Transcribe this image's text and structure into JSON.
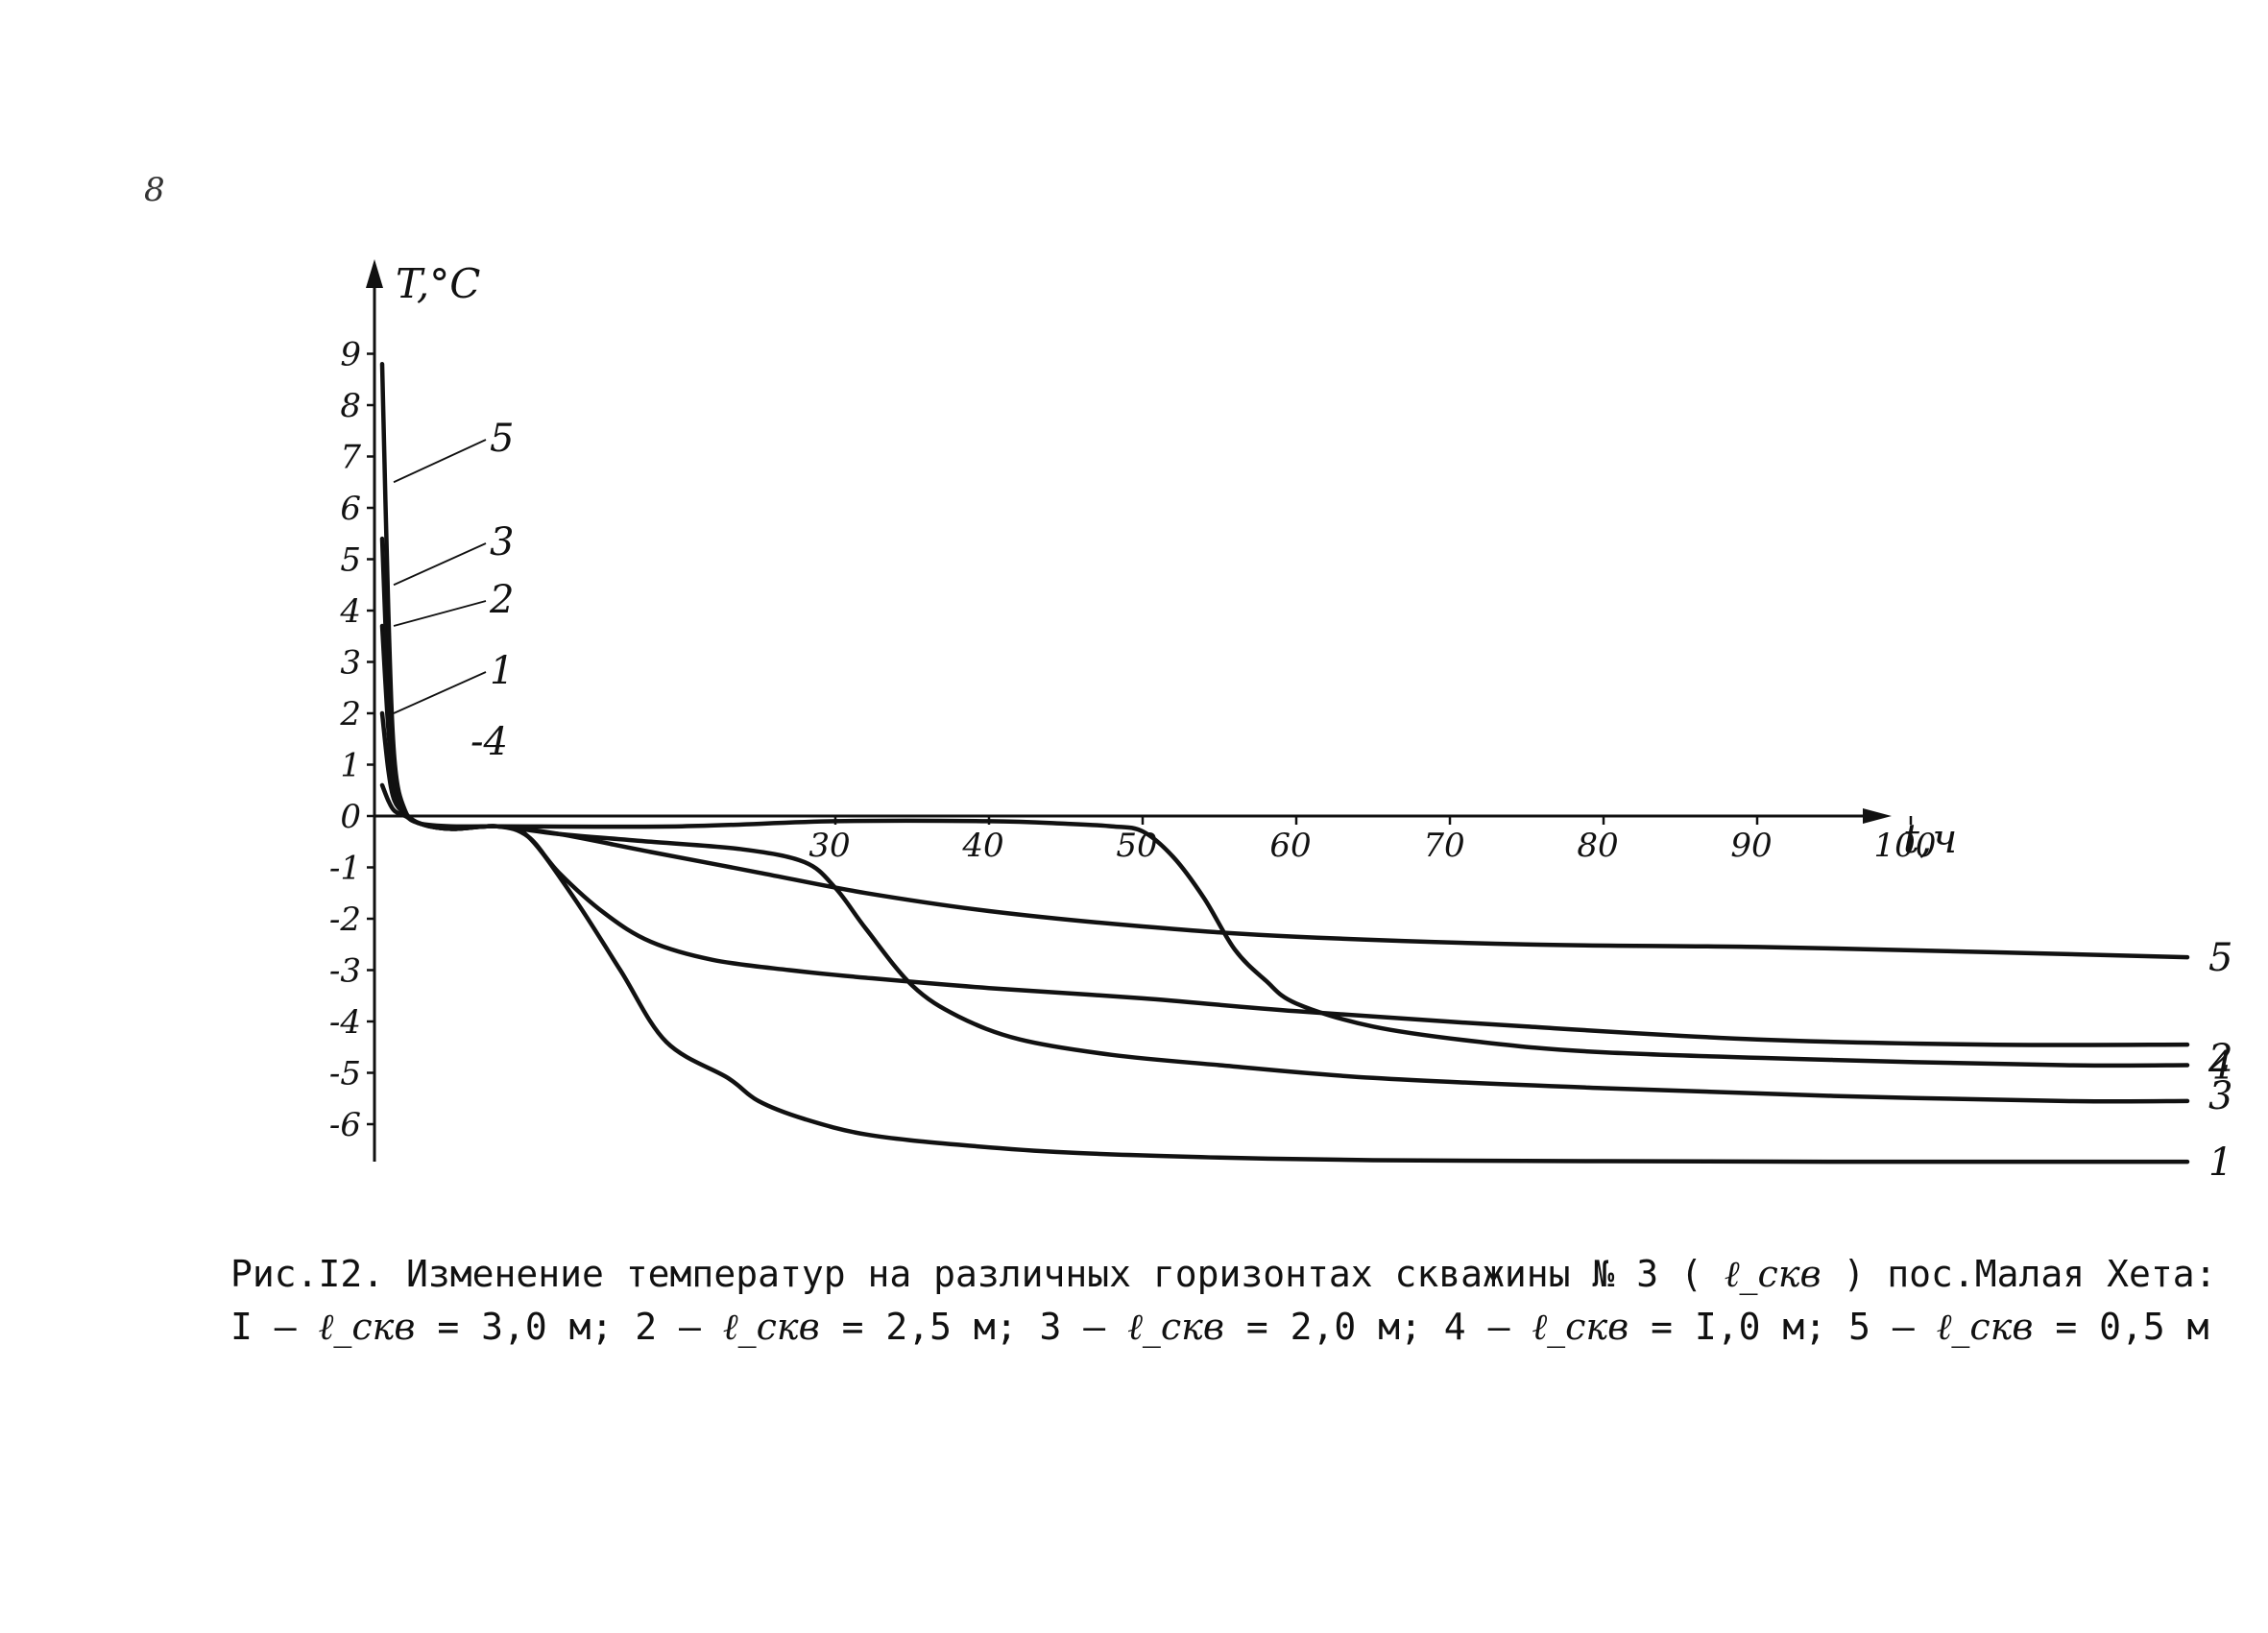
{
  "page": {
    "mark": "8"
  },
  "caption": {
    "line1_prefix": "Рис.I2. Изменение температур на различных горизонтах скважины № 3 (",
    "line1_symbol": "ℓ_скв",
    "line1_suffix": ") пос.Малая Хета:",
    "legend": [
      {
        "num": "I",
        "symbol": "ℓ_скв",
        "value": "= 3,0 м;"
      },
      {
        "num": "2",
        "symbol": "ℓ_скв",
        "value": "= 2,5 м;"
      },
      {
        "num": "3",
        "symbol": "ℓ_скв",
        "value": "= 2,0 м;"
      },
      {
        "num": "4",
        "symbol": "ℓ_скв",
        "value": "= I,0 м;"
      },
      {
        "num": "5",
        "symbol": "ℓ_скв",
        "value": "= 0,5 м"
      }
    ]
  },
  "chart_data": {
    "type": "line",
    "ylabel": "T,°C",
    "xlabel": "t,ч",
    "xlim": [
      0,
      120
    ],
    "ylim": [
      -6.5,
      10
    ],
    "x_ticks": [
      30,
      40,
      50,
      60,
      70,
      80,
      90,
      100
    ],
    "y_ticks": [
      9,
      8,
      7,
      6,
      5,
      4,
      3,
      2,
      1,
      0,
      -1,
      -2,
      -3,
      -4,
      -5,
      -6
    ],
    "grid": false,
    "series": [
      {
        "name": "1",
        "x": [
          0.5,
          0.9,
          1.3,
          2,
          3,
          5,
          8,
          10,
          13,
          16,
          19,
          23,
          25,
          28,
          32,
          38,
          45,
          55,
          65,
          80,
          95,
          110,
          118
        ],
        "y": [
          2.0,
          0.9,
          0.3,
          0.05,
          -0.15,
          -0.25,
          -0.2,
          -0.4,
          -1.6,
          -3.0,
          -4.4,
          -5.1,
          -5.55,
          -5.9,
          -6.2,
          -6.4,
          -6.55,
          -6.65,
          -6.7,
          -6.72,
          -6.73,
          -6.73,
          -6.73
        ]
      },
      {
        "name": "2",
        "x": [
          0.5,
          0.9,
          1.3,
          2,
          3,
          5,
          8,
          10,
          12,
          15,
          18,
          22,
          27,
          32,
          40,
          50,
          60,
          75,
          90,
          105,
          118
        ],
        "y": [
          3.7,
          1.7,
          0.5,
          0.05,
          -0.15,
          -0.25,
          -0.2,
          -0.4,
          -1.1,
          -1.9,
          -2.45,
          -2.8,
          -3.0,
          -3.15,
          -3.35,
          -3.55,
          -3.8,
          -4.1,
          -4.35,
          -4.45,
          -4.45
        ]
      },
      {
        "name": "3",
        "x": [
          0.5,
          0.9,
          1.3,
          2,
          3,
          5,
          8,
          12,
          18,
          24,
          28,
          30,
          32,
          35,
          38,
          42,
          48,
          55,
          65,
          80,
          95,
          110,
          118
        ],
        "y": [
          5.4,
          2.4,
          0.7,
          0.05,
          -0.15,
          -0.25,
          -0.2,
          -0.35,
          -0.5,
          -0.65,
          -0.9,
          -1.4,
          -2.2,
          -3.3,
          -3.9,
          -4.35,
          -4.65,
          -4.85,
          -5.1,
          -5.3,
          -5.45,
          -5.55,
          -5.55
        ]
      },
      {
        "name": "4",
        "x": [
          0.5,
          0.9,
          1.3,
          2,
          3,
          5,
          8,
          20,
          30,
          40,
          45,
          48,
          50,
          52,
          54,
          56,
          58,
          60,
          65,
          72,
          80,
          95,
          110,
          118
        ],
        "y": [
          0.6,
          0.3,
          0.1,
          0.0,
          -0.15,
          -0.2,
          -0.2,
          -0.2,
          -0.1,
          -0.1,
          -0.15,
          -0.2,
          -0.3,
          -0.8,
          -1.6,
          -2.6,
          -3.2,
          -3.65,
          -4.1,
          -4.4,
          -4.6,
          -4.75,
          -4.85,
          -4.85
        ]
      },
      {
        "name": "5",
        "x": [
          0.5,
          0.9,
          1.3,
          2,
          3,
          5,
          8,
          12,
          18,
          25,
          32,
          40,
          50,
          60,
          75,
          90,
          105,
          118
        ],
        "y": [
          8.8,
          4.0,
          1.1,
          0.1,
          -0.15,
          -0.25,
          -0.2,
          -0.35,
          -0.7,
          -1.1,
          -1.5,
          -1.85,
          -2.15,
          -2.35,
          -2.5,
          -2.55,
          -2.65,
          -2.75
        ]
      }
    ],
    "series_labels_left": [
      {
        "series": "5",
        "label": "5"
      },
      {
        "series": "3",
        "label": "3"
      },
      {
        "series": "2",
        "label": "2"
      },
      {
        "series": "1",
        "label": "1"
      },
      {
        "series": "4",
        "label": "-4"
      }
    ],
    "series_labels_right": [
      {
        "series": "5",
        "label": "5"
      },
      {
        "series": "4",
        "label": "4"
      },
      {
        "series": "3",
        "label": "3"
      },
      {
        "series": "2",
        "label": "2"
      },
      {
        "series": "1",
        "label": "1"
      }
    ]
  }
}
